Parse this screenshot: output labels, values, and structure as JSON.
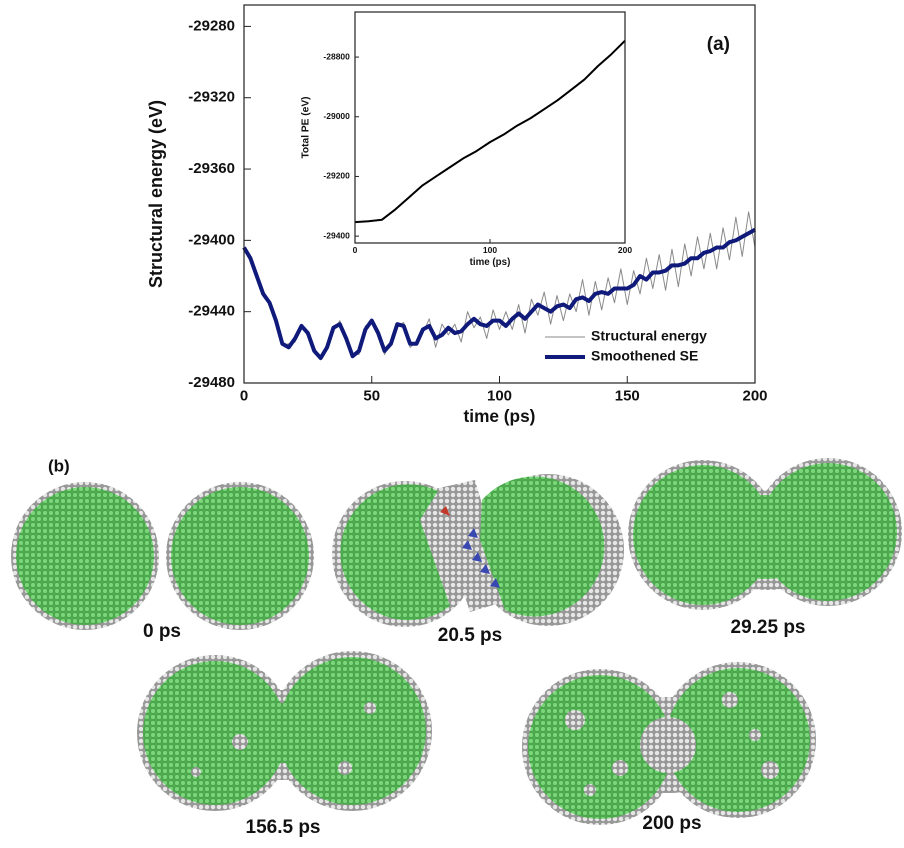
{
  "chart_data": [
    {
      "type": "line",
      "annotation": "(a)",
      "x_label": "time (ps)",
      "y_label": "Structural energy (eV)",
      "xlim": [
        0,
        200
      ],
      "xticks": [
        0,
        50,
        100,
        150,
        200
      ],
      "ylim": [
        -29480,
        -29268
      ],
      "yticks": [
        -29480,
        -29440,
        -29400,
        -29360,
        -29320,
        -29280
      ],
      "legend": "lower right",
      "x": [
        0,
        2.5,
        5,
        7.5,
        10,
        12.5,
        15,
        17.5,
        20,
        22.5,
        25,
        27.5,
        30,
        32.5,
        35,
        37.5,
        40,
        42.5,
        45,
        47.5,
        50,
        52.5,
        55,
        57.5,
        60,
        62.5,
        65,
        67.5,
        70,
        72.5,
        75,
        77.5,
        80,
        82.5,
        85,
        87.5,
        90,
        92.5,
        95,
        97.5,
        100,
        102.5,
        105,
        107.5,
        110,
        112.5,
        115,
        117.5,
        120,
        122.5,
        125,
        127.5,
        130,
        132.5,
        135,
        137.5,
        140,
        142.5,
        145,
        147.5,
        150,
        152.5,
        155,
        157.5,
        160,
        162.5,
        165,
        167.5,
        170,
        172.5,
        175,
        177.5,
        180,
        182.5,
        185,
        187.5,
        190,
        192.5,
        195,
        197.5,
        200
      ],
      "series": [
        {
          "name": "Structural energy",
          "color": "#8a8a8a",
          "values": [
            -29404,
            -29409,
            -29421,
            -29428,
            -29437,
            -29444,
            -29459,
            -29458,
            -29457,
            -29447,
            -29454,
            -29460,
            -29467,
            -29459,
            -29451,
            -29445,
            -29456,
            -29464,
            -29464,
            -29448,
            -29446,
            -29450,
            -29464,
            -29457,
            -29448,
            -29446,
            -29460,
            -29457,
            -29452,
            -29444,
            -29460,
            -29447,
            -29453,
            -29447,
            -29457,
            -29440,
            -29449,
            -29443,
            -29455,
            -29439,
            -29450,
            -29440,
            -29450,
            -29436,
            -29452,
            -29433,
            -29442,
            -29429,
            -29447,
            -29431,
            -29445,
            -29430,
            -29440,
            -29422,
            -29442,
            -29423,
            -29439,
            -29421,
            -29435,
            -29416,
            -29436,
            -29417,
            -29430,
            -29410,
            -29427,
            -29408,
            -29428,
            -29405,
            -29426,
            -29402,
            -29420,
            -29398,
            -29416,
            -29396,
            -29416,
            -29393,
            -29411,
            -29387,
            -29409,
            -29384,
            -29404
          ]
        },
        {
          "name": "Smoothened SE",
          "color": "#0f1a7a",
          "values": [
            -29404,
            -29410,
            -29420,
            -29430,
            -29435,
            -29445,
            -29458,
            -29460,
            -29455,
            -29448,
            -29452,
            -29462,
            -29466,
            -29460,
            -29449,
            -29447,
            -29455,
            -29465,
            -29462,
            -29450,
            -29445,
            -29452,
            -29462,
            -29458,
            -29447,
            -29448,
            -29458,
            -29458,
            -29450,
            -29448,
            -29455,
            -29453,
            -29449,
            -29452,
            -29451,
            -29447,
            -29444,
            -29447,
            -29448,
            -29445,
            -29445,
            -29448,
            -29444,
            -29441,
            -29444,
            -29440,
            -29436,
            -29438,
            -29440,
            -29437,
            -29436,
            -29438,
            -29433,
            -29432,
            -29434,
            -29430,
            -29429,
            -29430,
            -29427,
            -29427,
            -29427,
            -29425,
            -29420,
            -29422,
            -29418,
            -29418,
            -29417,
            -29414,
            -29414,
            -29413,
            -29410,
            -29410,
            -29407,
            -29406,
            -29404,
            -29404,
            -29401,
            -29400,
            -29398,
            -29396,
            -29394
          ]
        }
      ]
    },
    {
      "type": "line",
      "x_label": "time (ps)",
      "y_label": "Total PE (eV)",
      "xlim": [
        0,
        200
      ],
      "xticks": [
        0,
        100,
        200
      ],
      "ylim": [
        -29423,
        -28649
      ],
      "yticks": [
        -29400,
        -29200,
        -29000,
        -28800
      ],
      "color": "#000000",
      "x": [
        0,
        10,
        20,
        30,
        40,
        50,
        60,
        70,
        80,
        90,
        100,
        110,
        120,
        130,
        140,
        150,
        160,
        170,
        180,
        190,
        200
      ],
      "values": [
        -29353,
        -29350,
        -29345,
        -29310,
        -29270,
        -29230,
        -29200,
        -29170,
        -29140,
        -29115,
        -29085,
        -29060,
        -29030,
        -29005,
        -28975,
        -28945,
        -28910,
        -28875,
        -28830,
        -28790,
        -28745
      ]
    }
  ],
  "panel_b": {
    "label": "(b)",
    "snapshots": [
      "0 ps",
      "20.5 ps",
      "29.25 ps",
      "156.5 ps",
      "200 ps"
    ]
  }
}
